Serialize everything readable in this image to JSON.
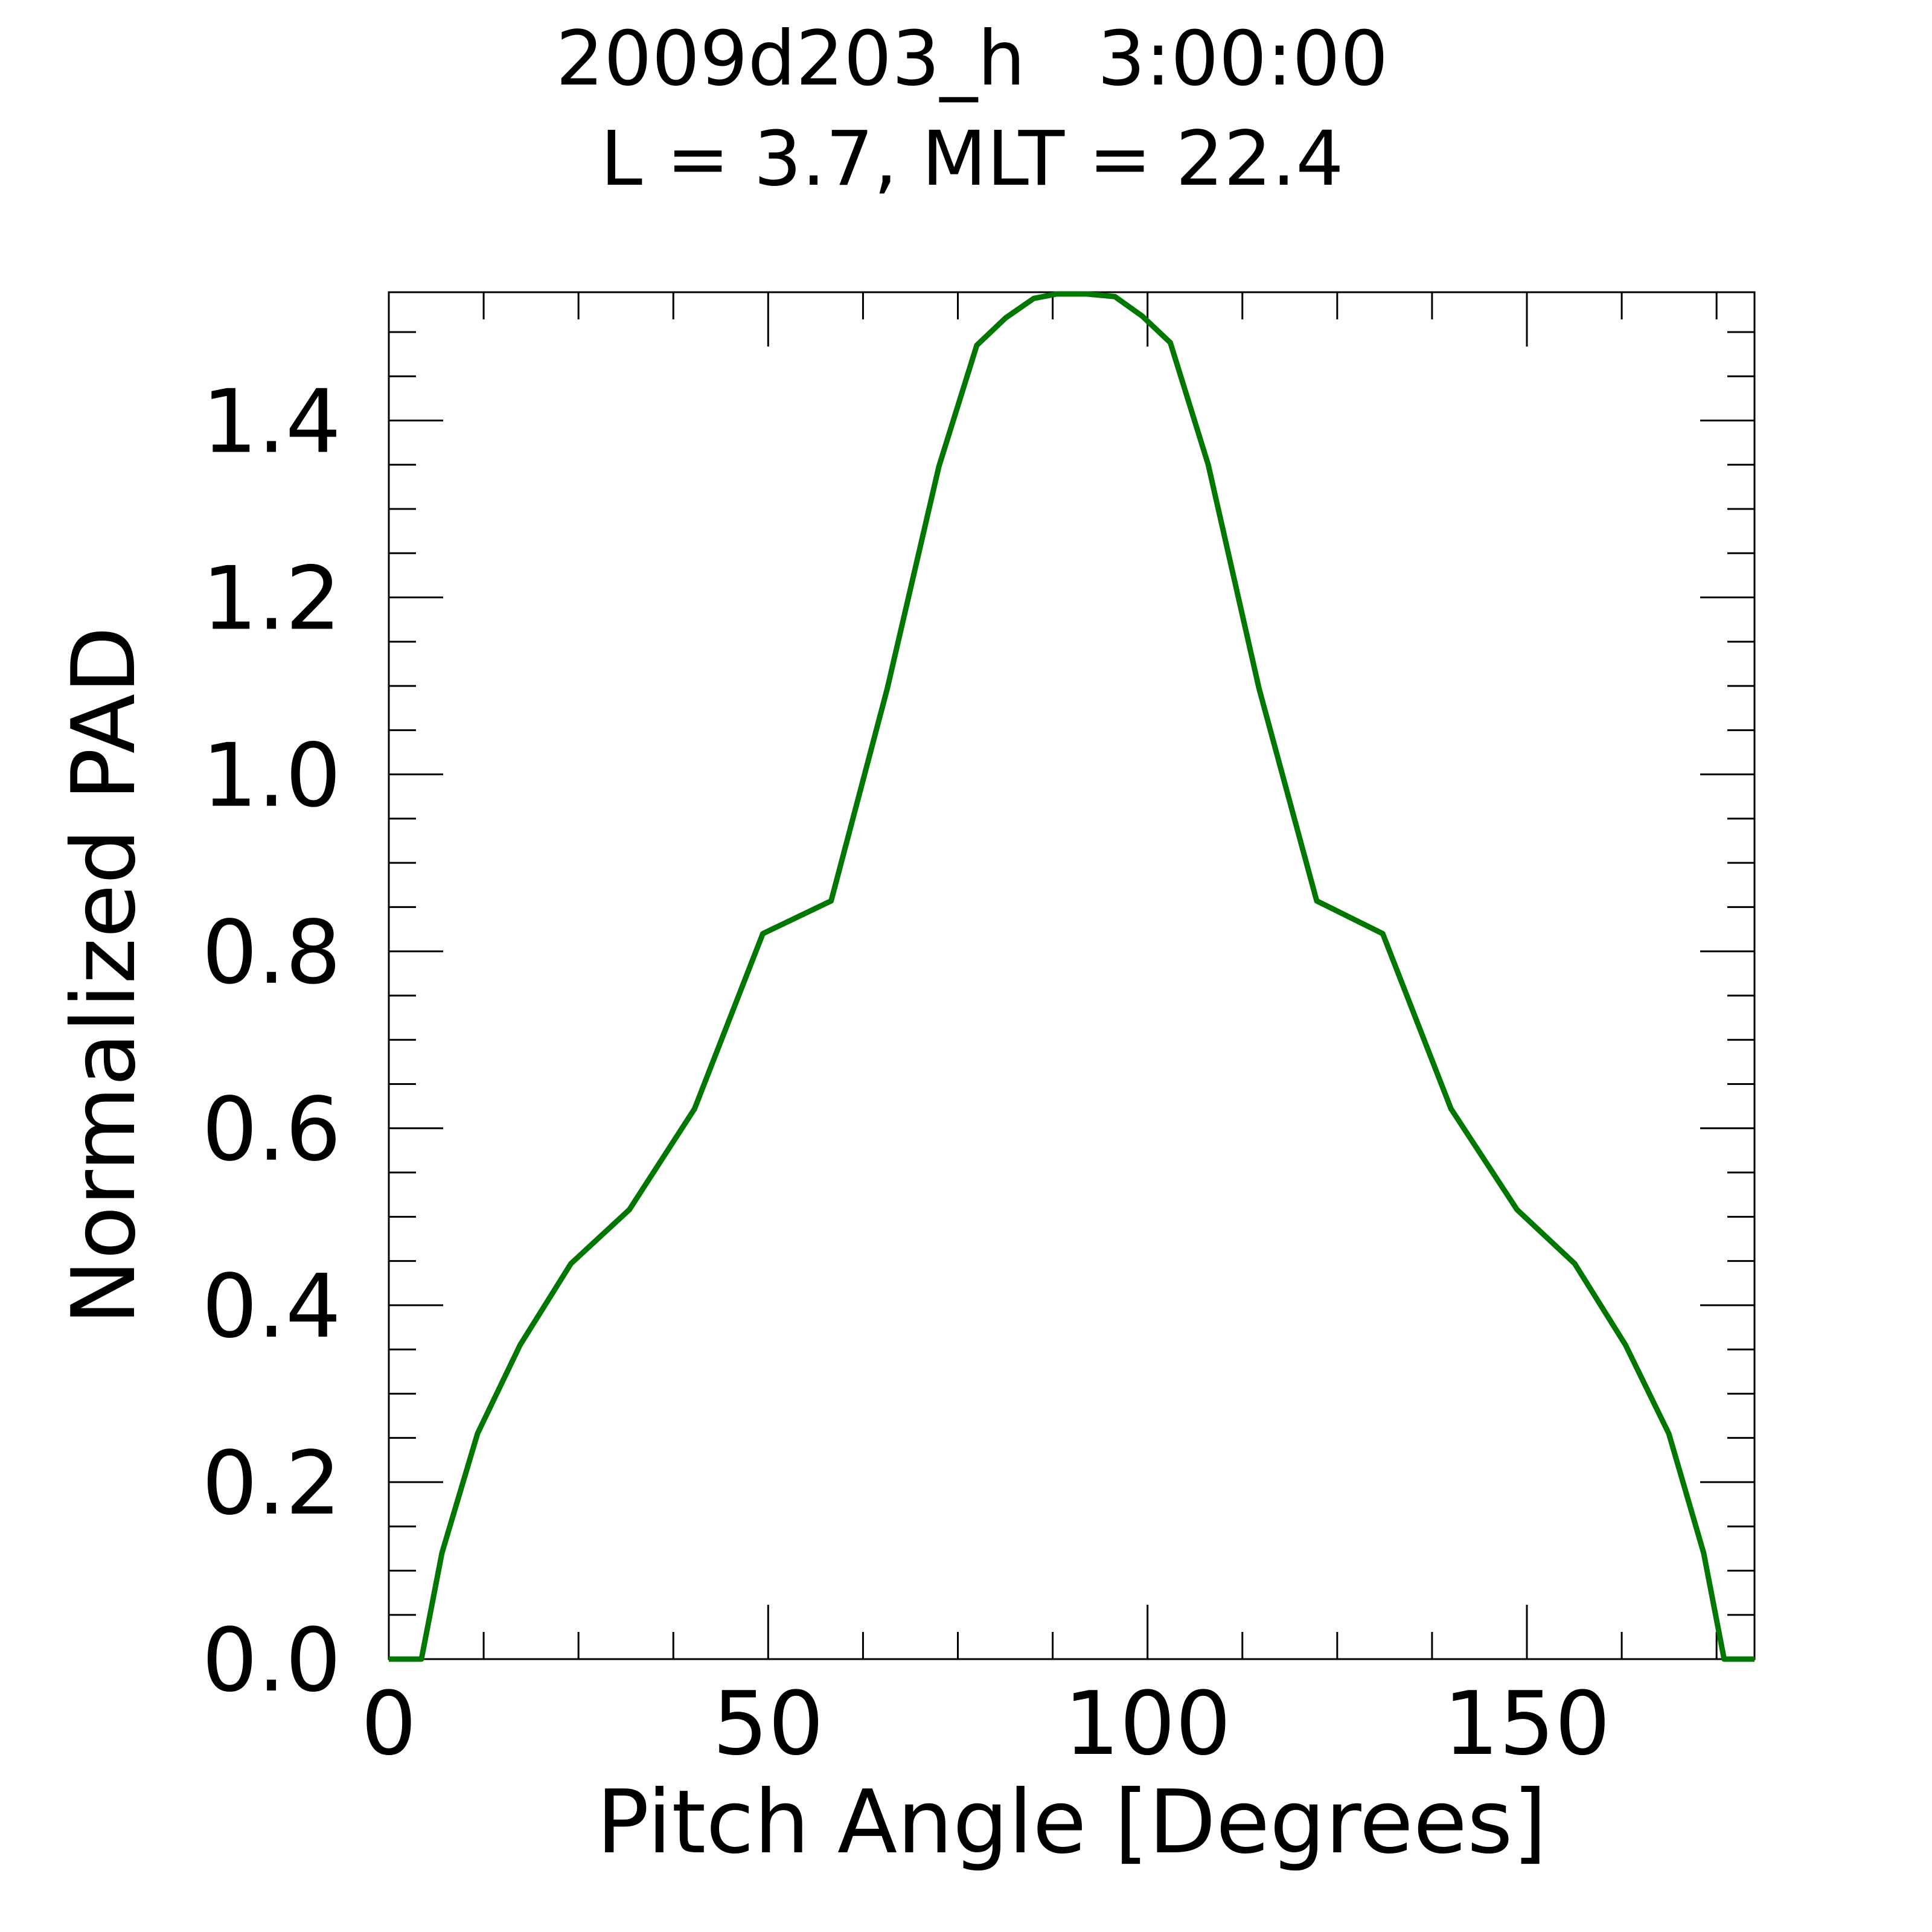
{
  "chart_data": {
    "type": "line",
    "title_line1": "2009d203_h   3:00:00",
    "title_line2": "L = 3.7, MLT = 22.4",
    "xlabel": "Pitch Angle [Degrees]",
    "ylabel": "Normalized PAD",
    "xlim": [
      0,
      180
    ],
    "ylim": [
      0,
      1.545
    ],
    "xticks": [
      0,
      50,
      100,
      150
    ],
    "xtick_labels": [
      "0",
      "50",
      "100",
      "150"
    ],
    "yticks": [
      0.0,
      0.2,
      0.4,
      0.6,
      0.8,
      1.0,
      1.2,
      1.4
    ],
    "ytick_labels": [
      "0.0",
      "0.2",
      "0.4",
      "0.6",
      "0.8",
      "1.0",
      "1.2",
      "1.4"
    ],
    "grid": false,
    "line_color": "#007700",
    "series": [
      {
        "x": [
          0,
          4.3,
          7,
          11.7,
          17.3,
          24,
          31.7,
          40.3,
          49.3,
          58.3,
          65.7,
          72.5,
          77.5,
          81.3,
          85,
          88,
          92,
          95.7,
          99.3,
          103,
          108,
          114.7,
          122.3,
          131,
          140,
          148.7,
          156.3,
          163,
          168.7,
          173.3,
          176,
          180
        ],
        "y": [
          0,
          0,
          0.12,
          0.255,
          0.355,
          0.447,
          0.508,
          0.622,
          0.82,
          0.857,
          1.097,
          1.348,
          1.485,
          1.516,
          1.538,
          1.543,
          1.543,
          1.54,
          1.518,
          1.488,
          1.35,
          1.097,
          0.857,
          0.82,
          0.622,
          0.508,
          0.447,
          0.355,
          0.255,
          0.12,
          0,
          0
        ]
      }
    ]
  }
}
